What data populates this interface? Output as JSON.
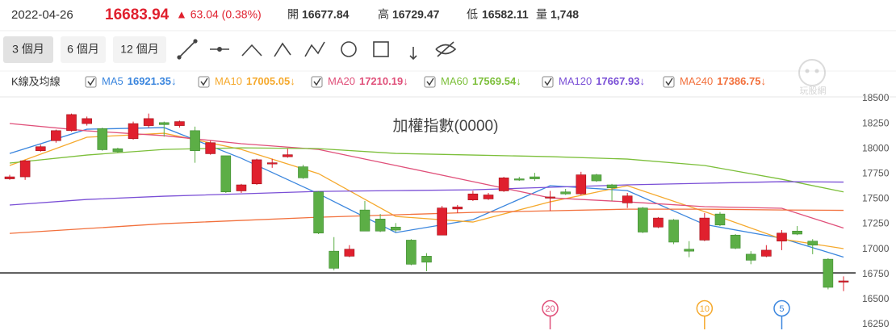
{
  "header": {
    "date": "2022-04-26",
    "change": "▲ 63.04 (0.38%)",
    "open_label": "開",
    "high_label": "高",
    "low_label": "低",
    "volume_label": "量",
    "volume": "1,748"
  },
  "toolbar": {
    "ranges": [
      "3 個月",
      "6 個月",
      "12 個月"
    ],
    "active_range": 0
  },
  "legend_title": "K線及均線",
  "watermark": "玩股網",
  "chart_data": {
    "type": "candlestick",
    "title": "加權指數(0000)",
    "open": [
      17700,
      17720,
      17980,
      18080,
      18180,
      18250,
      18200,
      18000,
      18100,
      18230,
      18260,
      18230,
      18180,
      17950,
      17930,
      17580,
      17650,
      17850,
      17920,
      17820,
      17570,
      16980,
      16930,
      17390,
      17300,
      17220,
      17090,
      16930,
      17140,
      17400,
      17490,
      17500,
      17580,
      17700,
      17720,
      17510,
      17570,
      17550,
      17740,
      17640,
      17460,
      17410,
      17220,
      17290,
      17000,
      17090,
      17350,
      17140,
      16950,
      16930,
      17080,
      17180,
      17080,
      16900,
      16677.84
    ],
    "high": [
      17740,
      17890,
      18040,
      18190,
      18350,
      18320,
      18210,
      18010,
      18270,
      18350,
      18270,
      18280,
      18220,
      18080,
      17930,
      17650,
      17900,
      17900,
      18000,
      17840,
      17580,
      17120,
      17040,
      17480,
      17350,
      17260,
      17100,
      16960,
      17430,
      17440,
      17580,
      17560,
      17720,
      17720,
      17760,
      17580,
      17600,
      17770,
      17750,
      17650,
      17560,
      17420,
      17320,
      17300,
      17080,
      17360,
      17370,
      17150,
      16980,
      17040,
      17190,
      17230,
      17100,
      16910,
      16729.47
    ],
    "low": [
      17690,
      17690,
      17970,
      18060,
      18170,
      18230,
      17980,
      17960,
      18090,
      18210,
      18120,
      18210,
      17860,
      17940,
      17560,
      17560,
      17640,
      17810,
      17910,
      17700,
      17150,
      16790,
      16920,
      17180,
      17170,
      17170,
      16840,
      16780,
      17140,
      17360,
      17480,
      17490,
      17570,
      17680,
      17680,
      17380,
      17540,
      17540,
      17670,
      17480,
      17410,
      17160,
      17210,
      17050,
      16920,
      17080,
      17230,
      17000,
      16850,
      16920,
      16990,
      17140,
      16950,
      16600,
      16582.11
    ],
    "close": [
      17720,
      17880,
      18020,
      18180,
      18340,
      18300,
      17990,
      17970,
      18250,
      18300,
      18240,
      18270,
      17980,
      18060,
      17570,
      17640,
      17890,
      17860,
      17940,
      17710,
      17160,
      16810,
      17000,
      17180,
      17180,
      17190,
      16850,
      16870,
      17410,
      17420,
      17550,
      17540,
      17710,
      17690,
      17700,
      17520,
      17550,
      17740,
      17680,
      17610,
      17530,
      17170,
      17310,
      17070,
      16980,
      17310,
      17240,
      17010,
      16890,
      16990,
      17160,
      17150,
      17040,
      16620,
      16683.94
    ],
    "up_color": "#e0202e",
    "down_color": "#5cae46",
    "xlim": [
      0,
      54
    ],
    "ylim": [
      16250,
      18500
    ],
    "yticks": [
      16250,
      16500,
      16750,
      17000,
      17250,
      17500,
      17750,
      18000,
      18250,
      18500
    ],
    "grid": false,
    "reference_line": 16763,
    "series": [
      {
        "name": "MA5",
        "color": "#3b86de",
        "trend": "↓",
        "x": [
          0,
          5,
          10,
          15,
          20,
          25,
          30,
          35,
          40,
          45,
          50,
          54
        ],
        "values": [
          17953,
          18194,
          18210,
          17905,
          17551,
          17165,
          17294,
          17632,
          17583,
          17246,
          17109,
          16921.35
        ]
      },
      {
        "name": "MA10",
        "color": "#f5a92d",
        "trend": "↓",
        "x": [
          0,
          5,
          10,
          15,
          20,
          25,
          30,
          35,
          40,
          45,
          50,
          54
        ],
        "values": [
          17833,
          18114,
          18154,
          17993,
          17752,
          17326,
          17270,
          17471,
          17632,
          17374,
          17101,
          17005.05
        ]
      },
      {
        "name": "MA20",
        "color": "#e0507a",
        "trend": "↓",
        "x": [
          0,
          5,
          10,
          15,
          20,
          25,
          30,
          35,
          40,
          45,
          50,
          54
        ],
        "values": [
          18251,
          18178,
          18130,
          18050,
          17993,
          17833,
          17672,
          17511,
          17471,
          17423,
          17407,
          17210.19
        ]
      },
      {
        "name": "MA60",
        "color": "#7cbf3a",
        "trend": "↓",
        "x": [
          0,
          5,
          10,
          15,
          20,
          25,
          30,
          35,
          40,
          45,
          50,
          54
        ],
        "values": [
          17857,
          17937,
          17993,
          18009,
          18001,
          17953,
          17937,
          17921,
          17897,
          17833,
          17696,
          17569.54
        ]
      },
      {
        "name": "MA120",
        "color": "#7a4fd6",
        "trend": "↓",
        "x": [
          0,
          5,
          10,
          15,
          20,
          25,
          30,
          35,
          40,
          45,
          50,
          54
        ],
        "values": [
          17439,
          17495,
          17527,
          17551,
          17575,
          17583,
          17591,
          17616,
          17640,
          17656,
          17672,
          17667.93
        ]
      },
      {
        "name": "MA240",
        "color": "#f2703c",
        "trend": "↓",
        "x": [
          0,
          5,
          10,
          15,
          20,
          25,
          30,
          35,
          40,
          45,
          50,
          54
        ],
        "values": [
          17157,
          17205,
          17254,
          17286,
          17318,
          17342,
          17366,
          17382,
          17398,
          17398,
          17390,
          17386.75
        ]
      }
    ],
    "markers": [
      {
        "label": "20",
        "x": 35,
        "color": "#e0507a"
      },
      {
        "label": "10",
        "x": 45,
        "color": "#f5a92d"
      },
      {
        "label": "5",
        "x": 50,
        "color": "#3b86de"
      }
    ]
  }
}
